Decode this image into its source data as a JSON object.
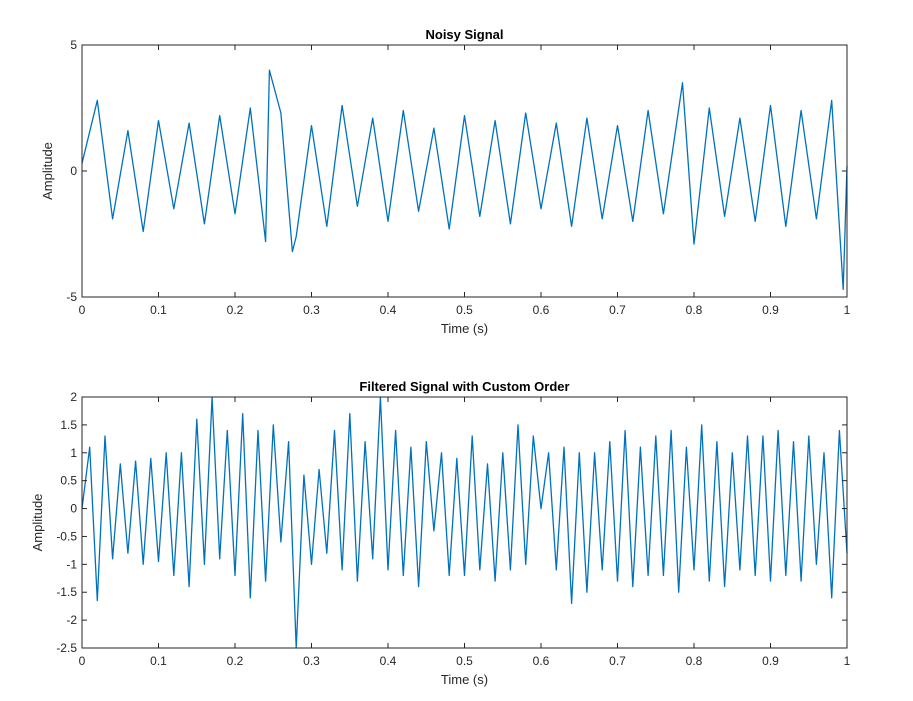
{
  "chart_data": [
    {
      "type": "line",
      "title": "Noisy Signal",
      "xlabel": "Time (s)",
      "ylabel": "Amplitude",
      "xlim": [
        0,
        1
      ],
      "ylim": [
        -5,
        5
      ],
      "x_ticks": [
        "0",
        "0.1",
        "0.2",
        "0.3",
        "0.4",
        "0.5",
        "0.6",
        "0.7",
        "0.8",
        "0.9",
        "1"
      ],
      "y_ticks": [
        "-5",
        "0",
        "5"
      ],
      "grid": false,
      "color": "#0072BD",
      "series": [
        {
          "x": [
            0,
            0.02,
            0.04,
            0.06,
            0.08,
            0.1,
            0.12,
            0.14,
            0.16,
            0.18,
            0.2,
            0.22,
            0.24,
            0.245,
            0.26,
            0.275,
            0.28,
            0.3,
            0.32,
            0.34,
            0.36,
            0.38,
            0.4,
            0.42,
            0.44,
            0.46,
            0.48,
            0.5,
            0.52,
            0.54,
            0.56,
            0.58,
            0.6,
            0.62,
            0.64,
            0.66,
            0.68,
            0.7,
            0.72,
            0.74,
            0.76,
            0.785,
            0.8,
            0.82,
            0.84,
            0.86,
            0.88,
            0.9,
            0.92,
            0.94,
            0.96,
            0.98,
            0.995,
            1
          ],
          "values": [
            0.3,
            2.8,
            -1.9,
            1.6,
            -2.4,
            2.0,
            -1.5,
            1.9,
            -2.1,
            2.2,
            -1.7,
            2.5,
            -2.8,
            4.0,
            2.3,
            -3.2,
            -2.6,
            1.8,
            -2.2,
            2.6,
            -1.4,
            2.1,
            -2.0,
            2.4,
            -1.6,
            1.7,
            -2.3,
            2.2,
            -1.8,
            2.0,
            -2.1,
            2.3,
            -1.5,
            1.9,
            -2.2,
            2.1,
            -1.9,
            1.8,
            -2.0,
            2.4,
            -1.7,
            3.5,
            -2.9,
            2.5,
            -1.8,
            2.1,
            -2.0,
            2.6,
            -2.2,
            2.4,
            -1.9,
            2.8,
            -4.7,
            0.2
          ]
        }
      ]
    },
    {
      "type": "line",
      "title": "Filtered Signal with Custom Order",
      "xlabel": "Time (s)",
      "ylabel": "Amplitude",
      "xlim": [
        0,
        1
      ],
      "ylim": [
        -2.5,
        2
      ],
      "x_ticks": [
        "0",
        "0.1",
        "0.2",
        "0.3",
        "0.4",
        "0.5",
        "0.6",
        "0.7",
        "0.8",
        "0.9",
        "1"
      ],
      "y_ticks": [
        "-2.5",
        "-2",
        "-1.5",
        "-1",
        "-0.5",
        "0",
        "0.5",
        "1",
        "1.5",
        "2"
      ],
      "grid": false,
      "color": "#0072BD",
      "series": [
        {
          "x": [
            0,
            0.01,
            0.02,
            0.03,
            0.04,
            0.05,
            0.06,
            0.07,
            0.08,
            0.09,
            0.1,
            0.11,
            0.12,
            0.13,
            0.14,
            0.15,
            0.16,
            0.17,
            0.18,
            0.19,
            0.2,
            0.21,
            0.22,
            0.23,
            0.24,
            0.25,
            0.26,
            0.27,
            0.28,
            0.29,
            0.3,
            0.31,
            0.32,
            0.33,
            0.34,
            0.35,
            0.36,
            0.37,
            0.38,
            0.39,
            0.4,
            0.41,
            0.42,
            0.43,
            0.44,
            0.45,
            0.46,
            0.47,
            0.48,
            0.49,
            0.5,
            0.51,
            0.52,
            0.53,
            0.54,
            0.55,
            0.56,
            0.57,
            0.58,
            0.59,
            0.6,
            0.61,
            0.62,
            0.63,
            0.64,
            0.65,
            0.66,
            0.67,
            0.68,
            0.69,
            0.7,
            0.71,
            0.72,
            0.73,
            0.74,
            0.75,
            0.76,
            0.77,
            0.78,
            0.79,
            0.8,
            0.81,
            0.82,
            0.83,
            0.84,
            0.85,
            0.86,
            0.87,
            0.88,
            0.89,
            0.9,
            0.91,
            0.92,
            0.93,
            0.94,
            0.95,
            0.96,
            0.97,
            0.98,
            0.99,
            1
          ],
          "values": [
            0.0,
            1.1,
            -1.65,
            1.3,
            -0.9,
            0.8,
            -0.8,
            0.85,
            -1.0,
            0.9,
            -0.95,
            1.0,
            -1.2,
            1.0,
            -1.4,
            1.6,
            -1.0,
            2.0,
            -0.9,
            1.4,
            -1.2,
            1.7,
            -1.6,
            1.4,
            -1.3,
            1.5,
            -0.6,
            1.2,
            -2.5,
            0.6,
            -1.0,
            0.7,
            -0.8,
            1.4,
            -1.1,
            1.7,
            -1.3,
            1.2,
            -0.9,
            2.0,
            -1.1,
            1.4,
            -1.2,
            1.1,
            -1.4,
            1.2,
            -0.4,
            1.0,
            -1.2,
            0.9,
            -1.2,
            1.3,
            -1.1,
            0.8,
            -1.3,
            1.0,
            -1.1,
            1.5,
            -1.0,
            1.3,
            0.0,
            1.0,
            -1.1,
            1.1,
            -1.7,
            1.0,
            -1.5,
            1.0,
            -1.1,
            1.2,
            -1.3,
            1.4,
            -1.4,
            1.1,
            -1.2,
            1.3,
            -1.2,
            1.4,
            -1.5,
            1.1,
            -1.1,
            1.5,
            -1.3,
            1.2,
            -1.4,
            1.0,
            -1.1,
            1.3,
            -1.2,
            1.3,
            -1.3,
            1.4,
            -1.2,
            1.2,
            -1.3,
            1.3,
            -1.0,
            1.0,
            -1.6,
            1.4,
            -0.8
          ]
        }
      ]
    }
  ]
}
